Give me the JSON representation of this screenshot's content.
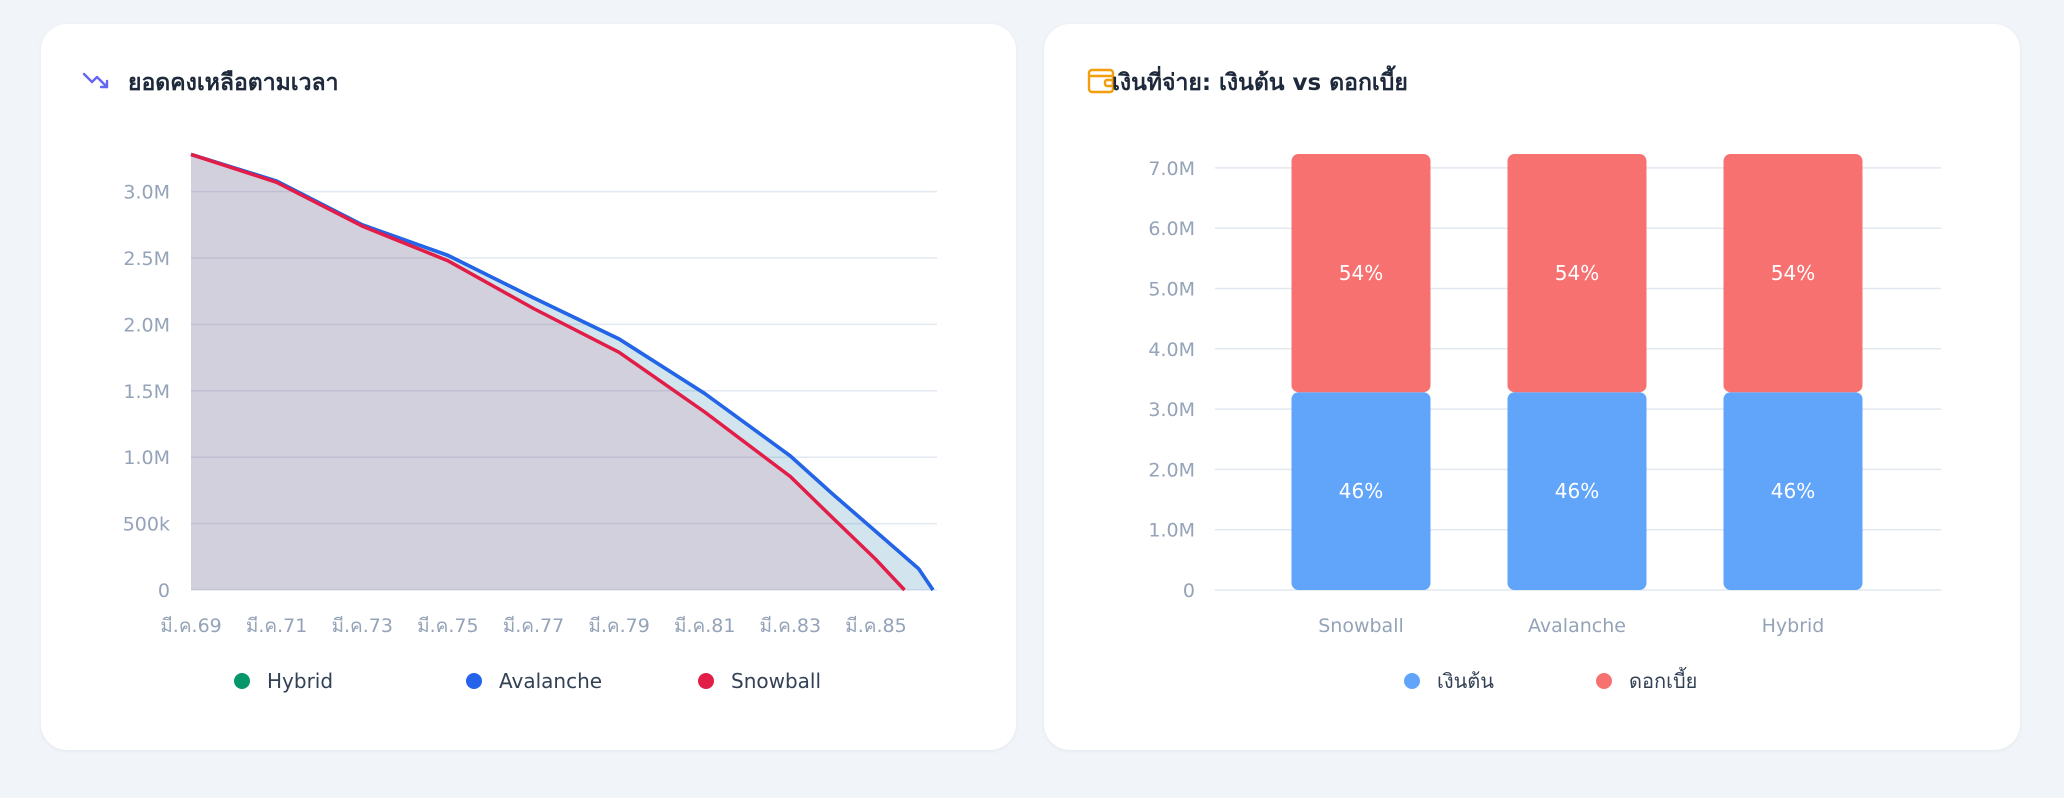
{
  "left_card": {
    "title": "ยอดคงเหลือตามเวลา",
    "icon": "trending-down-icon",
    "icon_color": "#6366f1"
  },
  "right_card": {
    "title": "เงินที่จ่าย: เงินต้น vs ดอกเบี้ย",
    "icon": "wallet-icon",
    "icon_color": "#f59e0b"
  },
  "chart_data": [
    {
      "type": "line",
      "title": "ยอดคงเหลือตามเวลา",
      "x_type": "date",
      "xlim": [
        "2026-03",
        "2043-07"
      ],
      "ylim": [
        0,
        3300000
      ],
      "y_ticks": [
        0,
        500000,
        1000000,
        1500000,
        2000000,
        2500000,
        3000000
      ],
      "y_tick_labels": [
        "0",
        "500k",
        "1.0M",
        "1.5M",
        "2.0M",
        "2.5M",
        "3.0M"
      ],
      "x_ticks": [
        "2026-03",
        "2028-03",
        "2030-03",
        "2032-03",
        "2034-03",
        "2036-03",
        "2038-03",
        "2040-03",
        "2042-03"
      ],
      "x_tick_labels": [
        "มี.ค.69",
        "มี.ค.71",
        "มี.ค.73",
        "มี.ค.75",
        "มี.ค.77",
        "มี.ค.79",
        "มี.ค.81",
        "มี.ค.83",
        "มี.ค.85"
      ],
      "grid": true,
      "area_fill": true,
      "legend_position": "bottom",
      "series": [
        {
          "name": "Hybrid",
          "color": "#059669",
          "points": [
            [
              "2026-03",
              3280000
            ],
            [
              "2028-03",
              3080000
            ],
            [
              "2030-03",
              2750000
            ],
            [
              "2032-03",
              2520000
            ],
            [
              "2034-03",
              2200000
            ],
            [
              "2036-03",
              1890000
            ],
            [
              "2038-03",
              1480000
            ],
            [
              "2040-03",
              1010000
            ],
            [
              "2041-03",
              720000
            ],
            [
              "2042-03",
              440000
            ],
            [
              "2043-03",
              160000
            ],
            [
              "2043-07",
              0
            ]
          ]
        },
        {
          "name": "Avalanche",
          "color": "#2563eb",
          "points": [
            [
              "2026-03",
              3280000
            ],
            [
              "2028-03",
              3080000
            ],
            [
              "2030-03",
              2750000
            ],
            [
              "2032-03",
              2520000
            ],
            [
              "2034-03",
              2200000
            ],
            [
              "2036-03",
              1890000
            ],
            [
              "2038-03",
              1480000
            ],
            [
              "2040-03",
              1010000
            ],
            [
              "2041-03",
              720000
            ],
            [
              "2042-03",
              440000
            ],
            [
              "2043-03",
              160000
            ],
            [
              "2043-07",
              0
            ]
          ]
        },
        {
          "name": "Snowball",
          "color": "#e11d48",
          "points": [
            [
              "2026-03",
              3280000
            ],
            [
              "2028-03",
              3070000
            ],
            [
              "2030-03",
              2740000
            ],
            [
              "2032-03",
              2480000
            ],
            [
              "2034-03",
              2120000
            ],
            [
              "2036-03",
              1790000
            ],
            [
              "2038-03",
              1340000
            ],
            [
              "2040-03",
              855000
            ],
            [
              "2041-03",
              540000
            ],
            [
              "2042-03",
              230000
            ],
            [
              "2042-11",
              0
            ]
          ]
        }
      ]
    },
    {
      "type": "bar",
      "stacked": true,
      "title": "เงินที่จ่าย: เงินต้น vs ดอกเบี้ย",
      "categories": [
        "Snowball",
        "Avalanche",
        "Hybrid"
      ],
      "ylim": [
        0,
        7000000
      ],
      "y_ticks": [
        0,
        1000000,
        2000000,
        3000000,
        4000000,
        5000000,
        6000000,
        7000000
      ],
      "y_tick_labels": [
        "0",
        "1.0M",
        "2.0M",
        "3.0M",
        "4.0M",
        "5.0M",
        "6.0M",
        "7.0M"
      ],
      "grid": true,
      "legend_position": "bottom",
      "series": [
        {
          "name": "เงินต้น",
          "color": "#60a5fa",
          "values": [
            3280000,
            3280000,
            3280000
          ],
          "labels": [
            "46%",
            "46%",
            "46%"
          ]
        },
        {
          "name": "ดอกเบี้ย",
          "color": "#f87171",
          "values": [
            3950000,
            3950000,
            3950000
          ],
          "labels": [
            "54%",
            "54%",
            "54%"
          ]
        }
      ]
    }
  ]
}
